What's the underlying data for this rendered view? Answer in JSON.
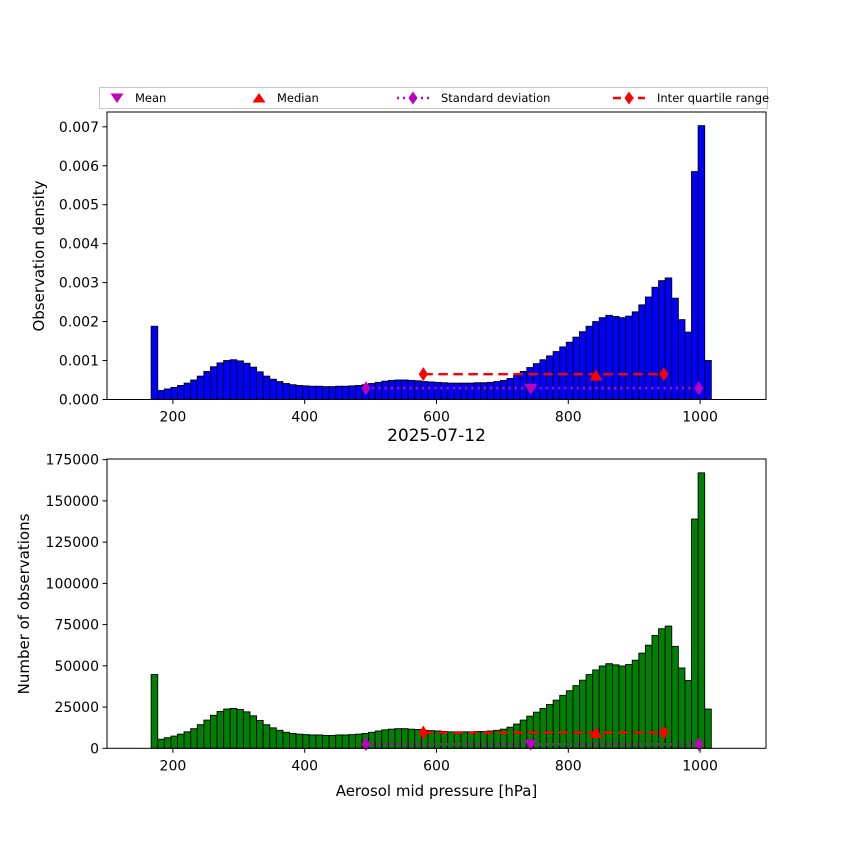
{
  "colors": {
    "density_bars": "#0000ff",
    "count_bars": "#008000",
    "bar_edge": "#000000",
    "mean_std": "#bf00bf",
    "median_iqr": "#ff0000",
    "axis": "#000000",
    "legend_border": "#c9c9c9",
    "background": "#ffffff"
  },
  "legend": {
    "items": [
      {
        "label": "Mean",
        "marker": "triangle-down",
        "color_key": "mean_std"
      },
      {
        "label": "Median",
        "marker": "triangle-up",
        "color_key": "median_iqr"
      },
      {
        "label": "Standard deviation",
        "marker": "diamond-dotted-line",
        "color_key": "mean_std"
      },
      {
        "label": "Inter quartile range",
        "marker": "diamond-dashed-line",
        "color_key": "median_iqr"
      }
    ]
  },
  "chart_data": [
    {
      "type": "bar",
      "name": "observation-density-histogram",
      "title": "",
      "xlabel": "",
      "ylabel": "Observation density",
      "legend_position": "top",
      "grid": false,
      "xlim": [
        100,
        1100
      ],
      "ylim": [
        0,
        0.00738
      ],
      "xticks": [
        200,
        400,
        600,
        800,
        1000
      ],
      "yticks": [
        0,
        0.001,
        0.002,
        0.003,
        0.004,
        0.005,
        0.006,
        0.007
      ],
      "ytick_labels": [
        "0.000",
        "0.001",
        "0.002",
        "0.003",
        "0.004",
        "0.005",
        "0.006",
        "0.007"
      ],
      "bar_color": "#0000ff",
      "bin_width": 10,
      "bin_centers": [
        172,
        182,
        192,
        202,
        212,
        222,
        232,
        242,
        252,
        262,
        272,
        282,
        292,
        302,
        312,
        322,
        332,
        342,
        352,
        362,
        372,
        382,
        392,
        402,
        412,
        422,
        432,
        442,
        452,
        462,
        472,
        482,
        492,
        502,
        512,
        522,
        532,
        542,
        552,
        562,
        572,
        582,
        592,
        602,
        612,
        622,
        632,
        642,
        652,
        662,
        672,
        682,
        692,
        702,
        712,
        722,
        732,
        742,
        752,
        762,
        772,
        782,
        792,
        802,
        812,
        822,
        832,
        842,
        852,
        862,
        872,
        882,
        892,
        902,
        912,
        922,
        932,
        942,
        952,
        962,
        972,
        982,
        992,
        1002,
        1012
      ],
      "values": [
        0.00188,
        0.00023,
        0.00027,
        0.00031,
        0.00036,
        0.00042,
        0.0005,
        0.0006,
        0.00072,
        0.00084,
        0.00094,
        0.001,
        0.00102,
        0.00099,
        0.00093,
        0.00083,
        0.00071,
        0.0006,
        0.00052,
        0.00046,
        0.00041,
        0.00038,
        0.00036,
        0.00035,
        0.00034,
        0.00034,
        0.00033,
        0.00033,
        0.00034,
        0.00034,
        0.00035,
        0.00036,
        0.00038,
        0.00041,
        0.00044,
        0.00047,
        0.00049,
        0.0005,
        0.0005,
        0.00049,
        0.00048,
        0.00046,
        0.00045,
        0.00044,
        0.00043,
        0.00042,
        0.00042,
        0.00042,
        0.00042,
        0.00043,
        0.00043,
        0.00044,
        0.00046,
        0.00049,
        0.00054,
        0.00062,
        0.00072,
        0.00082,
        0.00092,
        0.00102,
        0.00112,
        0.00123,
        0.00135,
        0.00147,
        0.0016,
        0.00174,
        0.00188,
        0.002,
        0.0021,
        0.00216,
        0.00213,
        0.0021,
        0.00214,
        0.00225,
        0.00243,
        0.00263,
        0.00288,
        0.00305,
        0.00312,
        0.0026,
        0.00205,
        0.00173,
        0.00585,
        0.00703,
        0.001
      ],
      "annotations": {
        "mean": {
          "x": 743,
          "y": 0.00029
        },
        "median": {
          "x": 842,
          "y": 0.0006
        },
        "std_range": {
          "x1": 493,
          "x2": 998,
          "y": 0.00029
        },
        "iqr_range": {
          "x1": 580,
          "x2": 945,
          "y": 0.00065
        }
      }
    },
    {
      "type": "bar",
      "name": "observation-count-histogram",
      "title": "2025-07-12",
      "xlabel": "Aerosol mid pressure [hPa]",
      "ylabel": "Number of observations",
      "grid": false,
      "xlim": [
        100,
        1100
      ],
      "ylim": [
        0,
        175400
      ],
      "xticks": [
        200,
        400,
        600,
        800,
        1000
      ],
      "yticks": [
        0,
        25000,
        50000,
        75000,
        100000,
        125000,
        150000,
        175000
      ],
      "ytick_labels": [
        "0",
        "25000",
        "50000",
        "75000",
        "100000",
        "125000",
        "150000",
        "175000"
      ],
      "bar_color": "#008000",
      "bin_width": 10,
      "bin_centers": [
        172,
        182,
        192,
        202,
        212,
        222,
        232,
        242,
        252,
        262,
        272,
        282,
        292,
        302,
        312,
        322,
        332,
        342,
        352,
        362,
        372,
        382,
        392,
        402,
        412,
        422,
        432,
        442,
        452,
        462,
        472,
        482,
        492,
        502,
        512,
        522,
        532,
        542,
        552,
        562,
        572,
        582,
        592,
        602,
        612,
        622,
        632,
        642,
        652,
        662,
        672,
        682,
        692,
        702,
        712,
        722,
        732,
        742,
        752,
        762,
        772,
        782,
        792,
        802,
        812,
        822,
        832,
        842,
        852,
        862,
        872,
        882,
        892,
        902,
        912,
        922,
        932,
        942,
        952,
        962,
        972,
        982,
        992,
        1002,
        1012
      ],
      "values": [
        44700,
        5500,
        6400,
        7400,
        8600,
        10000,
        11900,
        14300,
        17100,
        20000,
        22300,
        23800,
        24200,
        23500,
        22100,
        19700,
        16900,
        14300,
        12400,
        10900,
        9700,
        9000,
        8600,
        8300,
        8100,
        8100,
        7800,
        7800,
        8100,
        8100,
        8300,
        8600,
        9000,
        9700,
        10500,
        11200,
        11600,
        11900,
        11900,
        11600,
        11400,
        10900,
        10700,
        10500,
        10200,
        10000,
        10000,
        10000,
        10000,
        10200,
        10200,
        10500,
        10900,
        11600,
        12800,
        14700,
        17100,
        19500,
        21900,
        24200,
        26600,
        29200,
        32100,
        34900,
        38000,
        41300,
        44700,
        47500,
        49900,
        51300,
        50600,
        49900,
        50800,
        53400,
        57700,
        62500,
        68400,
        72500,
        74100,
        61800,
        48700,
        41100,
        139000,
        167000,
        23800
      ],
      "annotations": {
        "mean": {
          "x": 743,
          "y": 2500
        },
        "median": {
          "x": 842,
          "y": 9000
        },
        "std_range": {
          "x1": 493,
          "x2": 998,
          "y": 2500
        },
        "iqr_range": {
          "x1": 580,
          "x2": 945,
          "y": 9500
        }
      }
    }
  ]
}
